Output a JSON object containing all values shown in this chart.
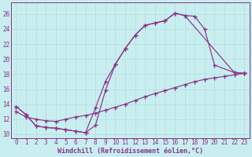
{
  "xlabel": "Windchill (Refroidissement éolien,°C)",
  "bg_color": "#c8eef0",
  "grid_color": "#b8dfe1",
  "line_color": "#883388",
  "xlim": [
    -0.5,
    23.5
  ],
  "ylim": [
    9.5,
    27.5
  ],
  "xticks": [
    0,
    1,
    2,
    3,
    4,
    5,
    6,
    7,
    8,
    9,
    10,
    11,
    12,
    13,
    14,
    15,
    16,
    17,
    18,
    19,
    20,
    21,
    22,
    23
  ],
  "yticks": [
    10,
    12,
    14,
    16,
    18,
    20,
    22,
    24,
    26
  ],
  "line1_x": [
    0,
    1,
    2,
    3,
    4,
    5,
    6,
    7,
    8,
    9,
    10,
    11,
    12,
    13,
    14,
    15,
    16,
    17,
    22,
    23
  ],
  "line1_y": [
    13.7,
    12.6,
    11.1,
    10.9,
    10.8,
    10.6,
    10.4,
    10.2,
    13.5,
    17.0,
    19.3,
    21.4,
    23.2,
    24.5,
    24.8,
    25.1,
    26.1,
    25.8,
    18.2,
    18.1
  ],
  "line2_x": [
    0,
    1,
    2,
    3,
    4,
    5,
    6,
    7,
    8,
    9,
    10,
    11,
    12,
    13,
    14,
    15,
    16,
    17,
    18,
    19,
    20,
    22,
    23
  ],
  "line2_y": [
    13.7,
    12.6,
    11.1,
    10.9,
    10.8,
    10.6,
    10.4,
    10.2,
    11.2,
    15.8,
    19.3,
    21.4,
    23.2,
    24.5,
    24.8,
    25.1,
    26.1,
    25.8,
    25.7,
    24.0,
    19.2,
    18.2,
    18.1
  ],
  "line3_x": [
    0,
    1,
    2,
    3,
    4,
    5,
    6,
    7,
    8,
    9,
    10,
    11,
    12,
    13,
    14,
    15,
    16,
    17,
    18,
    19,
    20,
    21,
    22,
    23
  ],
  "line3_y": [
    13.0,
    12.3,
    12.0,
    11.8,
    11.7,
    12.0,
    12.3,
    12.5,
    12.8,
    13.2,
    13.6,
    14.0,
    14.5,
    15.0,
    15.4,
    15.8,
    16.2,
    16.6,
    17.0,
    17.3,
    17.5,
    17.7,
    17.9,
    18.1
  ],
  "xlabel_fontsize": 6,
  "tick_fontsize": 5.5
}
